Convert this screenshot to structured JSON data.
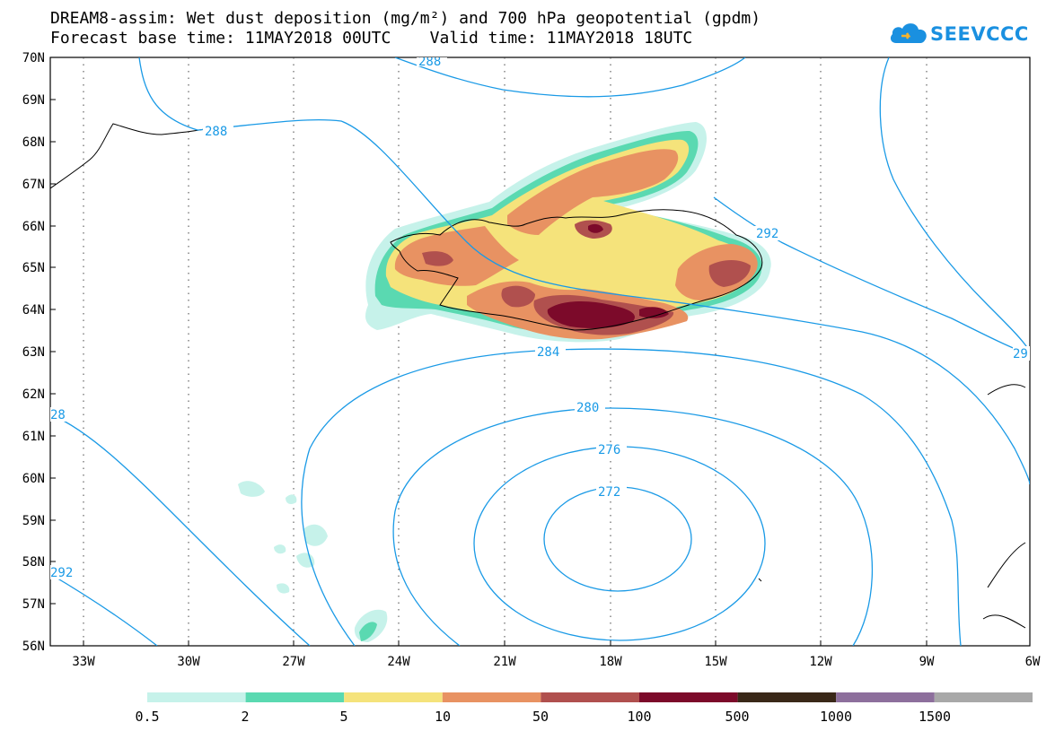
{
  "header": {
    "title_line1": "DREAM8-assim: Wet dust deposition (mg/m²) and 700 hPa geopotential (gpdm)",
    "title_line2": "Forecast base time: 11MAY2018 00UTC    Valid time: 11MAY2018 18UTC"
  },
  "logo": {
    "text": "SEEVCCC",
    "icon": "cloud-icon",
    "color": "#1a90e0"
  },
  "map": {
    "lat_labels": [
      "56N",
      "57N",
      "58N",
      "59N",
      "60N",
      "61N",
      "62N",
      "63N",
      "64N",
      "65N",
      "66N",
      "67N",
      "68N",
      "69N",
      "70N"
    ],
    "lon_labels": [
      "33W",
      "30W",
      "27W",
      "24W",
      "21W",
      "18W",
      "15W",
      "12W",
      "9W",
      "6W"
    ],
    "contours": [
      {
        "id": "c272",
        "label": "272"
      },
      {
        "id": "c276",
        "label": "276"
      },
      {
        "id": "c280",
        "label": "280"
      },
      {
        "id": "c284",
        "label": "284"
      },
      {
        "id": "c288a",
        "label": "288"
      },
      {
        "id": "c288b",
        "label": "288"
      },
      {
        "id": "c292a",
        "label": "292"
      },
      {
        "id": "c292b",
        "label": "292"
      },
      {
        "id": "c29",
        "label": "29"
      },
      {
        "id": "c28x",
        "label": "28"
      }
    ],
    "contour_color": "#1a9ae6"
  },
  "legend": {
    "bins": [
      {
        "label": "0.5",
        "color": "#c6f2ea"
      },
      {
        "label": "2",
        "color": "#5ad9b1"
      },
      {
        "label": "5",
        "color": "#f5e37b"
      },
      {
        "label": "10",
        "color": "#e89262"
      },
      {
        "label": "50",
        "color": "#b0504e"
      },
      {
        "label": "100",
        "color": "#7c0a2a"
      },
      {
        "label": "500",
        "color": "#3a2818"
      },
      {
        "label": "1000",
        "color": "#8d6f9c"
      },
      {
        "label": "1500",
        "color": "#a8a8a8"
      }
    ]
  }
}
